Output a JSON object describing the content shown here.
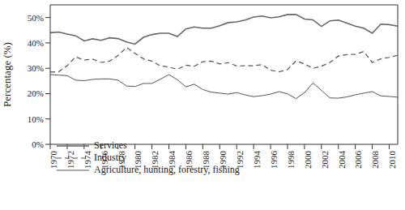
{
  "chart_data": {
    "type": "line",
    "y_label": "Percentage (%)",
    "x": [
      1970,
      1971,
      1972,
      1973,
      1974,
      1975,
      1976,
      1977,
      1978,
      1979,
      1980,
      1981,
      1982,
      1983,
      1984,
      1985,
      1986,
      1987,
      1988,
      1989,
      1990,
      1991,
      1992,
      1993,
      1994,
      1995,
      1996,
      1997,
      1998,
      1999,
      2000,
      2001,
      2002,
      2003,
      2004,
      2005,
      2006,
      2007,
      2008,
      2009,
      2010,
      2011
    ],
    "series": [
      {
        "name": "Services",
        "color": "#666666",
        "line_style": "solid",
        "values": [
          44,
          44.3,
          43.5,
          42.8,
          40.8,
          41.6,
          41,
          42,
          41.7,
          40.4,
          39.5,
          42.2,
          43.3,
          43.8,
          43.8,
          42.5,
          45.5,
          46.3,
          45.8,
          45.8,
          46.8,
          48,
          48.3,
          49,
          50.2,
          50.6,
          49.9,
          50.3,
          51.2,
          51.2,
          49.4,
          49.1,
          46.5,
          48.7,
          49,
          47.8,
          46.6,
          45.8,
          43.8,
          47.4,
          47.2,
          46.6
        ]
      },
      {
        "name": "Industry",
        "color": "#555555",
        "line_style": "dashed",
        "values": [
          28.5,
          28.6,
          31,
          34.5,
          33.2,
          33.6,
          32.3,
          32.8,
          35,
          38.2,
          35.9,
          33.7,
          32.8,
          30.9,
          30.5,
          29.6,
          31.2,
          30.8,
          32.6,
          32.8,
          31.7,
          32.2,
          30.9,
          31,
          31,
          31.4,
          29.2,
          28.6,
          29.5,
          32.9,
          31.7,
          30,
          30.8,
          32.3,
          34.8,
          35.4,
          35.5,
          36.6,
          32.3,
          33.7,
          34.3,
          35.1
        ]
      },
      {
        "name": "Agriculture, hunting, forestry, fishing",
        "color": "#555555",
        "line_style": "solid",
        "values": [
          27.5,
          27.3,
          27.1,
          25.3,
          25.1,
          25.6,
          25.8,
          25.8,
          25.3,
          23,
          22.8,
          24,
          24,
          25.7,
          27.5,
          25.5,
          22.7,
          23.7,
          21.6,
          20.6,
          20.2,
          19.8,
          20.4,
          19.5,
          18.8,
          19.2,
          19.8,
          20.8,
          19.9,
          18,
          20.4,
          24.2,
          21.3,
          18.3,
          18.2,
          18.7,
          19.5,
          20.2,
          20.8,
          19.1,
          18.9,
          18.6
        ]
      }
    ],
    "xlim": [
      1970,
      2011
    ],
    "xticks": [
      1970,
      1972,
      1974,
      1976,
      1978,
      1980,
      1982,
      1984,
      1986,
      1988,
      1990,
      1992,
      1994,
      1996,
      1998,
      2000,
      2002,
      2004,
      2006,
      2008,
      2010
    ],
    "ylim": [
      0,
      55
    ],
    "yticks": [
      {
        "value": 0,
        "label": "0%"
      },
      {
        "value": 10,
        "label": "10%"
      },
      {
        "value": 20,
        "label": "20%"
      },
      {
        "value": 30,
        "label": "30%"
      },
      {
        "value": 40,
        "label": "40%"
      },
      {
        "value": 50,
        "label": "50%"
      }
    ],
    "grid": false,
    "legend": "lower left"
  }
}
